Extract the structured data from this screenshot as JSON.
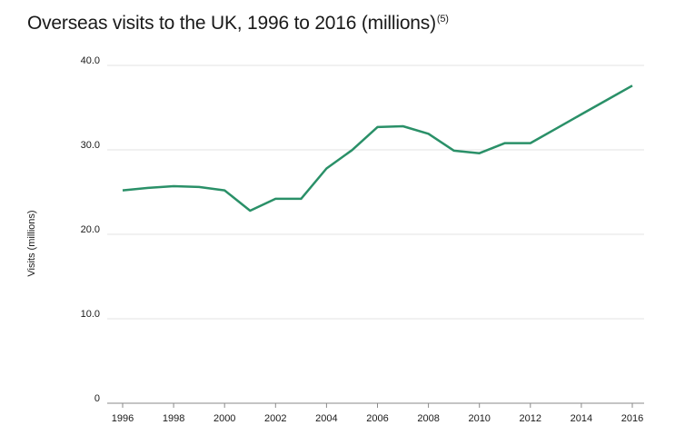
{
  "chart_data": {
    "type": "line",
    "title": "Overseas visits to the UK, 1996 to 2016 (millions)",
    "title_note": "(5)",
    "xlabel": "",
    "ylabel": "Visits (millions)",
    "x": [
      1996,
      1997,
      1998,
      1999,
      2000,
      2001,
      2002,
      2003,
      2004,
      2005,
      2006,
      2007,
      2008,
      2009,
      2010,
      2011,
      2012,
      2013,
      2014,
      2015,
      2016
    ],
    "series": [
      {
        "values": [
          25.2,
          25.5,
          25.7,
          25.6,
          25.2,
          22.8,
          24.2,
          24.2,
          27.8,
          29.97,
          32.7,
          32.8,
          31.9,
          29.9,
          29.6,
          30.8,
          30.8,
          32.5,
          34.2,
          35.9,
          37.6
        ]
      }
    ],
    "xticks": [
      "1996",
      "1998",
      "2000",
      "2002",
      "2004",
      "2006",
      "2008",
      "2010",
      "2012",
      "2014",
      "2016"
    ],
    "yticks": [
      "0",
      "10.0",
      "20.0",
      "30.0",
      "40.0"
    ],
    "xlim": [
      1996,
      2016
    ],
    "ylim": [
      0,
      40
    ],
    "grid": true,
    "legend": "none",
    "colors": {
      "line": "#2a9068",
      "grid": "#e3e3e3",
      "axis": "#8a8a8a"
    }
  }
}
